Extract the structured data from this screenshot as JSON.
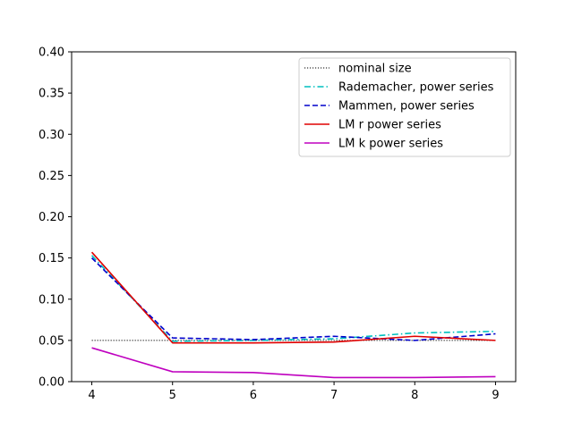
{
  "chart_data": {
    "type": "line",
    "title": "",
    "xlabel": "",
    "ylabel": "",
    "x": [
      4,
      5,
      6,
      7,
      8,
      9
    ],
    "xlim": [
      3.75,
      9.25
    ],
    "ylim": [
      0.0,
      0.4
    ],
    "xticks": [
      "4",
      "5",
      "6",
      "7",
      "8",
      "9"
    ],
    "yticks": [
      "0.00",
      "0.05",
      "0.10",
      "0.15",
      "0.20",
      "0.25",
      "0.30",
      "0.35",
      "0.40"
    ],
    "grid": false,
    "legend_position": "top-right",
    "series": [
      {
        "name": "nominal size",
        "color": "#000000",
        "style": "dotted",
        "values": [
          0.05,
          0.05,
          0.05,
          0.05,
          0.05,
          0.05
        ]
      },
      {
        "name": "Rademacher, power series",
        "color": "#00bfbf",
        "style": "dashdot",
        "values": [
          0.153,
          0.049,
          0.05,
          0.052,
          0.059,
          0.061
        ]
      },
      {
        "name": "Mammen, power series",
        "color": "#0000cc",
        "style": "dashed",
        "values": [
          0.15,
          0.053,
          0.051,
          0.055,
          0.05,
          0.058
        ]
      },
      {
        "name": "LM r power series",
        "color": "#e00000",
        "style": "solid",
        "values": [
          0.157,
          0.047,
          0.047,
          0.048,
          0.055,
          0.05
        ]
      },
      {
        "name": "LM k power series",
        "color": "#bf00bf",
        "style": "solid",
        "values": [
          0.041,
          0.012,
          0.011,
          0.005,
          0.005,
          0.006
        ]
      }
    ]
  }
}
